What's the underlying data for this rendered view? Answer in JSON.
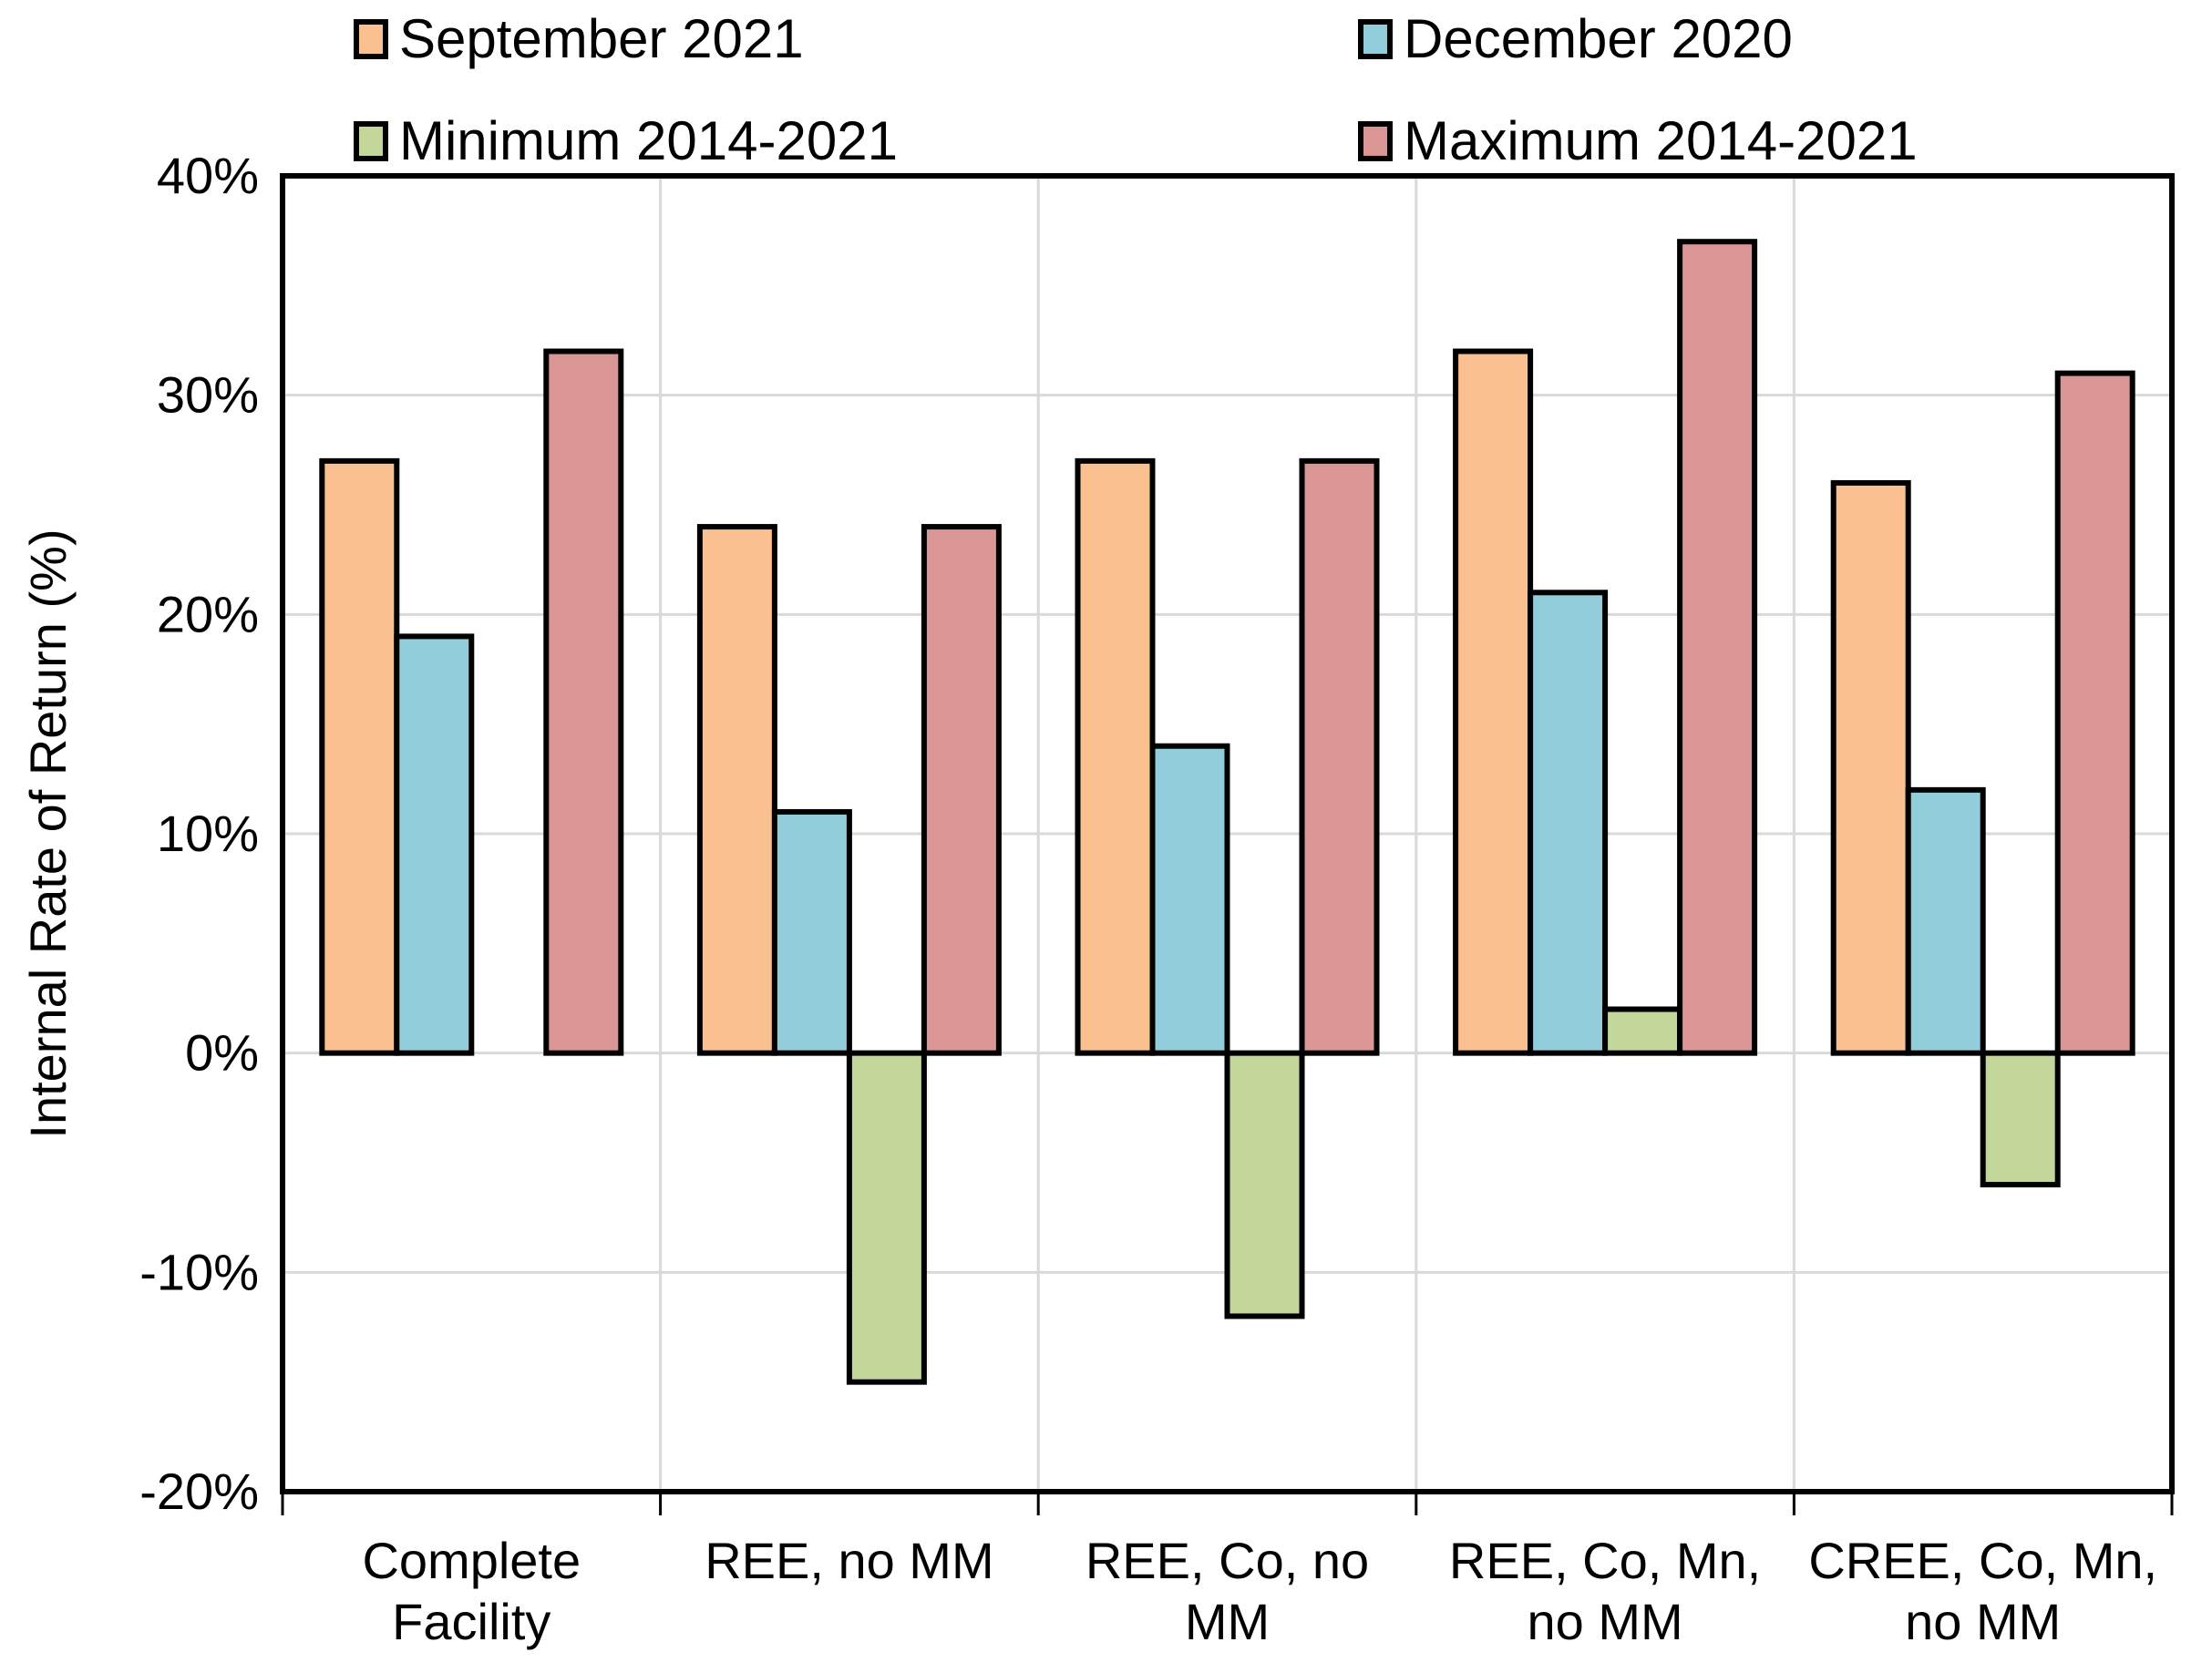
{
  "chart_data": {
    "type": "bar",
    "title": "",
    "xlabel": "",
    "ylabel": "Internal Rate of Return (%)",
    "ylim": [
      -20,
      40
    ],
    "ytick_step": 10,
    "yticks": [
      "40%",
      "30%",
      "20%",
      "10%",
      "0%",
      "-10%",
      "-20%"
    ],
    "grid": true,
    "legend_position": "top",
    "categories": [
      "Complete Facility",
      "REE, no MM",
      "REE, Co, no MM",
      "REE, Co, Mn, no MM",
      "CREE, Co, Mn, no MM"
    ],
    "category_label_lines": [
      [
        "Complete",
        "Facility"
      ],
      [
        "REE, no MM"
      ],
      [
        "REE, Co, no",
        "MM"
      ],
      [
        "REE, Co, Mn,",
        "no MM"
      ],
      [
        "CREE, Co, Mn,",
        "no MM"
      ]
    ],
    "series": [
      {
        "name": "September 2021",
        "color": "#FAC090",
        "values": [
          27,
          24,
          27,
          32,
          26
        ]
      },
      {
        "name": "December 2020",
        "color": "#92CDDC",
        "values": [
          19,
          11,
          14,
          21,
          12
        ]
      },
      {
        "name": "Minimum 2014-2021",
        "color": "#C4D79B",
        "values": [
          null,
          -15,
          -12,
          2,
          -6
        ]
      },
      {
        "name": "Maximum 2014-2021",
        "color": "#D99694",
        "values": [
          32,
          24,
          27,
          37,
          31
        ]
      }
    ]
  },
  "style": {
    "background": "#FFFFFF",
    "bar_outline": "#000000",
    "gridline": "#D9D9D9",
    "axis": "#000000",
    "text": "#000000"
  }
}
